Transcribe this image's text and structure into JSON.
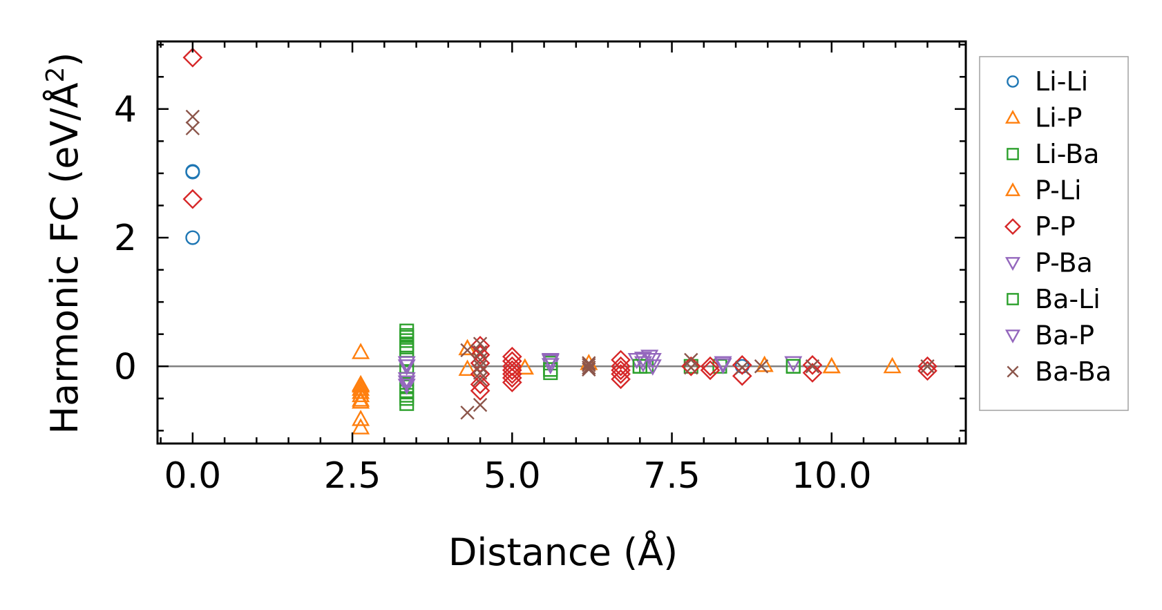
{
  "chart_data": {
    "type": "scatter",
    "xlabel": "Distance (Å)",
    "ylabel": "Harmonic FC (eV/Å²)",
    "ylabel_main": "Harmonic FC (eV/Å",
    "ylabel_sup": "2",
    "ylabel_tail": ")",
    "xlim": [
      -0.55,
      12.1
    ],
    "ylim": [
      -1.2,
      5.05
    ],
    "xticks": [
      0.0,
      2.5,
      5.0,
      7.5,
      10.0
    ],
    "xtick_labels": [
      "0.0",
      "2.5",
      "5.0",
      "7.5",
      "10.0"
    ],
    "yticks": [
      0,
      2,
      4
    ],
    "ytick_labels": [
      "0",
      "2",
      "4"
    ],
    "zero_line": true,
    "legend_position": "outside-right",
    "series": [
      {
        "name": "Li-Li",
        "marker": "circle",
        "color": "#1f77b4",
        "x": [
          0.0,
          0.0,
          0.0,
          8.6
        ],
        "y": [
          3.02,
          2.0,
          3.03,
          0.0
        ]
      },
      {
        "name": "Li-P",
        "marker": "triangle-up",
        "color": "#ff7f0e",
        "x": [
          2.63,
          2.63,
          2.63,
          2.63,
          2.63,
          2.63,
          2.63,
          2.63,
          2.63,
          4.3,
          4.3,
          5.2,
          6.2,
          8.95,
          10.0,
          10.95
        ],
        "y": [
          0.22,
          -0.28,
          -0.35,
          -0.4,
          -0.55,
          -0.82,
          -0.95,
          -0.3,
          -0.45,
          0.28,
          -0.04,
          -0.02,
          0.05,
          0.02,
          0.0,
          0.0
        ]
      },
      {
        "name": "Li-Ba",
        "marker": "square",
        "color": "#2ca02c",
        "x": [
          3.35,
          3.35,
          3.35,
          3.35,
          3.35,
          3.35,
          3.35,
          3.35,
          3.35,
          3.35,
          3.35,
          3.35,
          5.6,
          5.6,
          5.6,
          7.0,
          7.1,
          7.8,
          8.25,
          9.4
        ],
        "y": [
          0.55,
          0.48,
          0.4,
          0.33,
          0.25,
          0.1,
          -0.08,
          -0.2,
          -0.32,
          -0.4,
          -0.5,
          -0.58,
          0.05,
          -0.05,
          -0.1,
          0.0,
          0.0,
          0.0,
          0.0,
          0.0
        ]
      },
      {
        "name": "P-Li",
        "marker": "triangle-up",
        "color": "#ff7f0e",
        "x": [
          2.63,
          2.63,
          4.3,
          5.2,
          8.95,
          10.0
        ],
        "y": [
          -0.28,
          -0.52,
          0.28,
          -0.02,
          0.02,
          0.0
        ]
      },
      {
        "name": "P-P",
        "marker": "diamond",
        "color": "#d62728",
        "x": [
          0.0,
          0.0,
          4.5,
          4.5,
          4.5,
          4.5,
          4.5,
          4.5,
          5.0,
          5.0,
          5.0,
          5.0,
          5.0,
          5.0,
          5.0,
          6.7,
          6.7,
          6.7,
          6.7,
          6.7,
          7.8,
          8.1,
          8.1,
          8.6,
          8.6,
          9.7,
          9.7,
          11.5,
          11.5
        ],
        "y": [
          4.8,
          2.6,
          0.32,
          0.18,
          0.05,
          -0.12,
          -0.28,
          -0.38,
          0.15,
          0.08,
          0.0,
          -0.06,
          -0.12,
          -0.18,
          -0.25,
          0.1,
          0.0,
          -0.06,
          -0.12,
          -0.2,
          0.0,
          0.0,
          -0.06,
          0.02,
          -0.15,
          0.02,
          -0.1,
          0.0,
          -0.07
        ]
      },
      {
        "name": "P-Ba",
        "marker": "triangle-down",
        "color": "#9467bd",
        "x": [
          3.35,
          3.35,
          3.35,
          5.6,
          5.6,
          6.95,
          7.05,
          7.15,
          7.2,
          8.3,
          9.4
        ],
        "y": [
          0.05,
          -0.2,
          -0.3,
          0.1,
          0.02,
          0.1,
          0.05,
          0.15,
          0.0,
          0.05,
          0.05
        ]
      },
      {
        "name": "Ba-Li",
        "marker": "square",
        "color": "#2ca02c",
        "x": [
          3.35,
          3.35,
          3.35,
          5.6,
          7.0,
          9.4
        ],
        "y": [
          0.45,
          0.3,
          -0.45,
          -0.05,
          0.0,
          0.0
        ]
      },
      {
        "name": "Ba-P",
        "marker": "triangle-down",
        "color": "#9467bd",
        "x": [
          3.35,
          3.35,
          5.6,
          7.05,
          7.2,
          8.3
        ],
        "y": [
          0.0,
          -0.25,
          0.08,
          0.12,
          0.1,
          0.02
        ]
      },
      {
        "name": "Ba-Ba",
        "marker": "x",
        "color": "#8c564b",
        "x": [
          0.0,
          0.0,
          4.3,
          4.3,
          4.5,
          4.5,
          4.5,
          4.5,
          4.5,
          4.5,
          4.5,
          6.2,
          6.2,
          6.2,
          6.2,
          7.8,
          7.8,
          8.6,
          8.9,
          9.7,
          11.5
        ],
        "y": [
          3.88,
          3.7,
          0.25,
          -0.72,
          0.35,
          0.22,
          0.1,
          0.0,
          -0.1,
          -0.2,
          -0.6,
          0.05,
          0.02,
          -0.02,
          -0.05,
          0.1,
          -0.02,
          -0.02,
          0.0,
          0.0,
          0.0
        ]
      }
    ]
  }
}
